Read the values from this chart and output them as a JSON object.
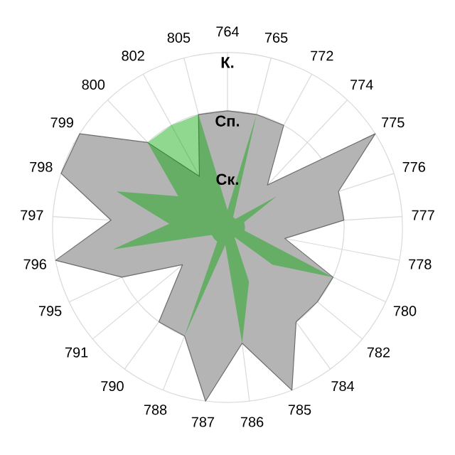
{
  "chart_data": {
    "type": "radar",
    "categories": [
      "764",
      "765",
      "772",
      "774",
      "775",
      "776",
      "777",
      "778",
      "780",
      "782",
      "784",
      "785",
      "786",
      "787",
      "788",
      "790",
      "791",
      "795",
      "796",
      "797",
      "798",
      "799",
      "800",
      "802",
      "805"
    ],
    "ylim": [
      0,
      3
    ],
    "yticks": [
      {
        "value": 1,
        "label": "Ск."
      },
      {
        "value": 2,
        "label": "Сп."
      },
      {
        "value": 3,
        "label": "К."
      }
    ],
    "grid": true,
    "series": [
      {
        "color": "#b4b4b4",
        "values": [
          2,
          2,
          2,
          1,
          3,
          2,
          2,
          1,
          2,
          2,
          2,
          3,
          2,
          3,
          2,
          2,
          1,
          2,
          3,
          2,
          3,
          3,
          2,
          1,
          2
        ]
      },
      {
        "color": "#03a603",
        "values": [
          0.3,
          2,
          0.2,
          0.2,
          1,
          0.3,
          0.3,
          0.3,
          2,
          1,
          0.2,
          1,
          2,
          0.3,
          2,
          0.3,
          0.3,
          0.3,
          2,
          1,
          2,
          1,
          2,
          2,
          2
        ]
      }
    ]
  }
}
